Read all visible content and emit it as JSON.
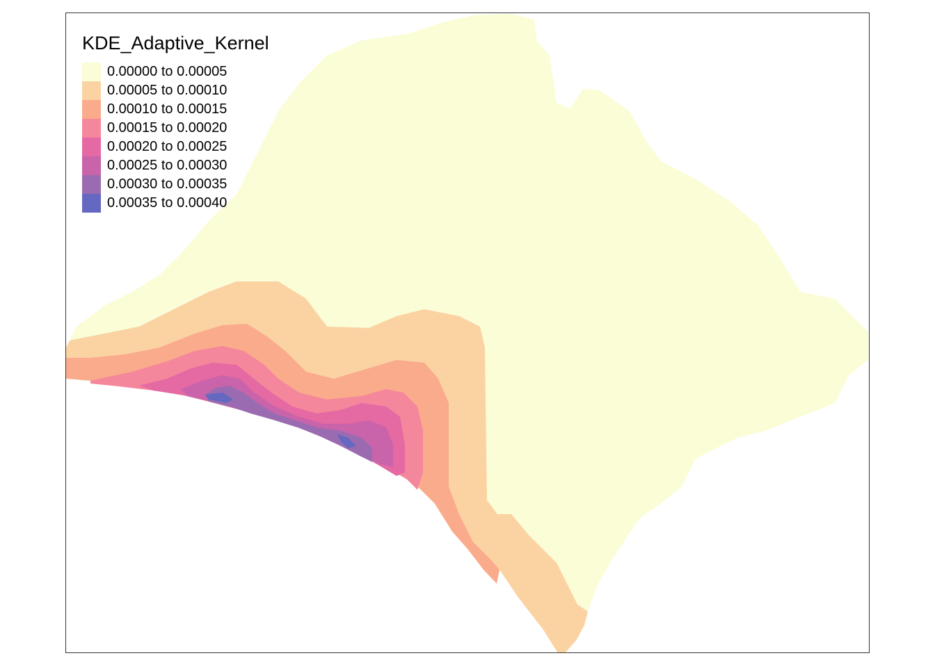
{
  "legend": {
    "title": "KDE_Adaptive_Kernel",
    "classes": [
      {
        "label": "0.00000 to 0.00005",
        "color": "#fafdd5"
      },
      {
        "label": "0.00005 to 0.00010",
        "color": "#fbd3a3"
      },
      {
        "label": "0.00010 to 0.00015",
        "color": "#faab8c"
      },
      {
        "label": "0.00015 to 0.00020",
        "color": "#f4879b"
      },
      {
        "label": "0.00020 to 0.00025",
        "color": "#e569a3"
      },
      {
        "label": "0.00025 to 0.00030",
        "color": "#c964aa"
      },
      {
        "label": "0.00030 to 0.00035",
        "color": "#9b6bb1"
      },
      {
        "label": "0.00035 to 0.00040",
        "color": "#6468c0"
      }
    ]
  }
}
